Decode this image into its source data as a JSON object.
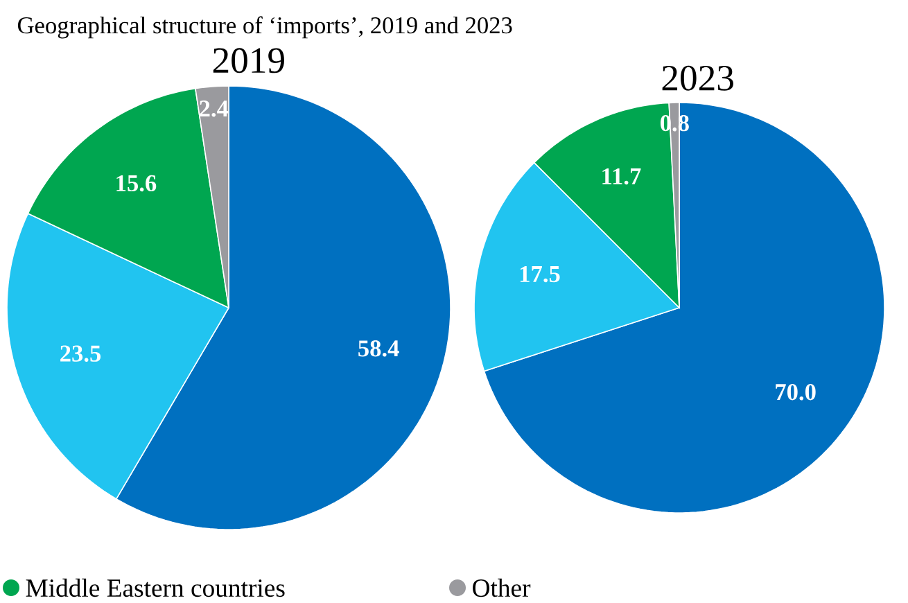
{
  "chart_data": [
    {
      "type": "pie",
      "title": "2019",
      "annotations": [
        "Geographical structure of ‘imports’, 2019 and 2023"
      ],
      "categories": [
        null,
        null,
        "Middle Eastern countries",
        "Other"
      ],
      "values": [
        58.4,
        23.5,
        15.6,
        2.4
      ],
      "colors": [
        "#0070c0",
        "#21c4f0",
        "#00a650",
        "#9a9a9e"
      ],
      "data_labels": true,
      "legend": "bottom"
    },
    {
      "type": "pie",
      "title": "2023",
      "values": [
        70.0,
        17.5,
        11.7,
        0.8
      ],
      "value_labels": [
        "70.0",
        "17.5",
        "11.7",
        "0.8"
      ],
      "categories": [
        null,
        null,
        null,
        null
      ],
      "colors": [
        "#0070c0",
        "#21c4f0",
        "#00a650",
        "#9a9a9e"
      ],
      "legend": false
    }
  ]
}
